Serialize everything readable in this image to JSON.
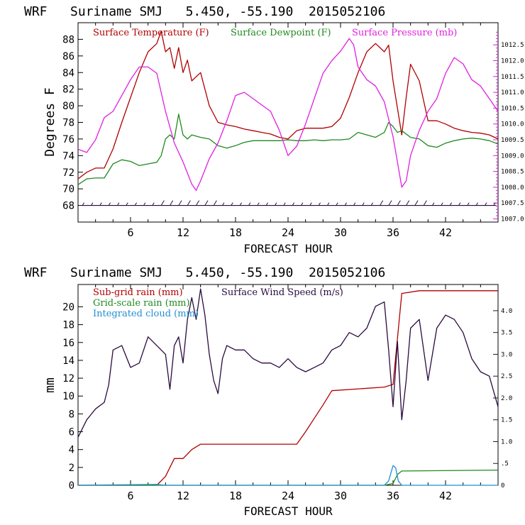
{
  "colors": {
    "temperature": "#b00000",
    "dewpoint": "#1f8a1f",
    "pressure": "#e020e0",
    "wind": "#2a0a40",
    "subgrid_rain": "#b00000",
    "gridscale_rain": "#1f8a1f",
    "cloud": "#1f8fd0",
    "axis": "#000000"
  },
  "chart_data": [
    {
      "type": "line",
      "title": "WRF   Suriname SMJ   5.450, -55.190  2015052106",
      "xlabel": "FORECAST HOUR",
      "ylabel": "Degrees F",
      "xlim": [
        0,
        48
      ],
      "ylim": [
        66,
        90
      ],
      "y2lim": [
        1006.9,
        1013.2
      ],
      "x_ticks": [
        6,
        12,
        18,
        24,
        30,
        36,
        42
      ],
      "y_ticks": [
        68,
        70,
        72,
        74,
        76,
        78,
        80,
        82,
        84,
        86,
        88
      ],
      "y2_ticks": [
        "1007.0",
        "1007.5",
        "1008.0",
        "1008.5",
        "1009.0",
        "1009.5",
        "1010.0",
        "1010.5",
        "1011.0",
        "1011.5",
        "1012.0",
        "1012.5"
      ],
      "legend": [
        "Surface Temperature (F)",
        "Surface Dewpoint (F)",
        "Surface Pressure (mb)"
      ],
      "legend_position": "top",
      "wind_barb_row_value": 68,
      "series": [
        {
          "name": "Surface Temperature (F)",
          "axis": "left",
          "x": [
            0,
            1,
            2,
            3,
            4,
            5,
            6,
            7,
            8,
            9,
            9.5,
            10,
            10.5,
            11,
            11.5,
            12,
            12.5,
            13,
            14,
            15,
            16,
            17,
            18,
            19,
            20,
            21,
            22,
            23,
            24,
            25,
            26,
            27,
            28,
            29,
            30,
            31,
            32,
            33,
            34,
            35,
            35.5,
            36,
            37,
            37.5,
            38,
            39,
            40,
            41,
            42,
            43,
            44,
            45,
            46,
            47,
            48
          ],
          "values": [
            71.2,
            72,
            72.5,
            72.5,
            74.8,
            78,
            81,
            84,
            86.5,
            87.5,
            89,
            86.5,
            87,
            84.5,
            87,
            84,
            85.5,
            83,
            84,
            80,
            78,
            77.7,
            77.5,
            77.2,
            77,
            76.8,
            76.6,
            76.2,
            76,
            77,
            77.3,
            77.3,
            77.3,
            77.5,
            78.5,
            81,
            84,
            86.5,
            87.5,
            86.5,
            87.3,
            83,
            76.5,
            81,
            85,
            83,
            78.2,
            78.2,
            77.8,
            77.3,
            77,
            76.8,
            76.7,
            76.5,
            76
          ]
        },
        {
          "name": "Surface Dewpoint (F)",
          "axis": "left",
          "x": [
            0,
            1,
            2,
            3,
            4,
            5,
            6,
            7,
            8,
            9,
            9.5,
            10,
            10.5,
            11,
            11.5,
            12,
            12.5,
            13,
            14,
            15,
            16,
            17,
            18,
            19,
            20,
            21,
            22,
            23,
            24,
            25,
            26,
            27,
            28,
            29,
            30,
            31,
            32,
            33,
            34,
            35,
            35.5,
            36,
            36.5,
            37,
            38,
            39,
            40,
            41,
            42,
            43,
            44,
            45,
            46,
            47,
            48
          ],
          "values": [
            70.5,
            71.2,
            71.3,
            71.3,
            73,
            73.5,
            73.3,
            72.8,
            73,
            73.2,
            74,
            76,
            76.5,
            76,
            79,
            76.5,
            76,
            76.5,
            76.2,
            76,
            75.2,
            74.9,
            75.2,
            75.6,
            75.8,
            75.8,
            75.8,
            75.8,
            75.9,
            75.8,
            75.8,
            75.9,
            75.8,
            75.9,
            75.9,
            76,
            76.8,
            76.5,
            76.2,
            76.8,
            78,
            77.5,
            76.8,
            77,
            76.2,
            76,
            75.2,
            75,
            75.5,
            75.8,
            76,
            76.1,
            76,
            75.8,
            75.4
          ]
        },
        {
          "name": "Surface Pressure (mb)",
          "axis": "right",
          "x": [
            0,
            1,
            2,
            3,
            4,
            5,
            6,
            7,
            8,
            9,
            10,
            11,
            12,
            13,
            13.5,
            14,
            15,
            16,
            17,
            18,
            19,
            20,
            21,
            22,
            23,
            24,
            25,
            26,
            27,
            28,
            29,
            30,
            31,
            31.5,
            32,
            33,
            34,
            35,
            36,
            36.5,
            37,
            37.5,
            38,
            39,
            40,
            41,
            42,
            43,
            44,
            45,
            46,
            47,
            48
          ],
          "values": [
            1009.2,
            1009.1,
            1009.5,
            1010.2,
            1010.4,
            1010.9,
            1011.4,
            1011.8,
            1011.8,
            1011.6,
            1010.4,
            1009.4,
            1008.8,
            1008.1,
            1007.9,
            1008.2,
            1008.9,
            1009.4,
            1010.1,
            1010.9,
            1011.0,
            1010.8,
            1010.6,
            1010.4,
            1009.8,
            1009.0,
            1009.3,
            1010.0,
            1010.8,
            1011.6,
            1012.0,
            1012.3,
            1012.7,
            1012.5,
            1011.8,
            1011.4,
            1011.2,
            1010.7,
            1009.6,
            1008.8,
            1008.0,
            1008.2,
            1009.0,
            1009.8,
            1010.4,
            1010.8,
            1011.6,
            1012.1,
            1011.9,
            1011.4,
            1011.2,
            1010.8,
            1010.4
          ]
        }
      ]
    },
    {
      "type": "line",
      "title": "WRF   Suriname SMJ   5.450, -55.190  2015052106",
      "xlabel": "FORECAST HOUR",
      "ylabel": "mm",
      "xlim": [
        0,
        48
      ],
      "ylim": [
        0,
        22.5
      ],
      "y2lim": [
        0,
        4.6
      ],
      "x_ticks": [
        6,
        12,
        18,
        24,
        30,
        36,
        42
      ],
      "y_ticks": [
        0,
        2,
        4,
        6,
        8,
        10,
        12,
        14,
        16,
        18,
        20
      ],
      "y2_ticks": [
        "0",
        ".5",
        "1.0",
        "1.5",
        "2.0",
        "2.5",
        "3.0",
        "3.5",
        "4.0"
      ],
      "legend": [
        "Sub-grid rain (mm)",
        "Surface Wind Speed (m/s)",
        "Grid-scale rain (mm)",
        "Integrated cloud (mm)"
      ],
      "legend_position": "top-left",
      "series": [
        {
          "name": "Sub-grid rain (mm)",
          "axis": "left",
          "x": [
            0,
            9,
            10,
            11,
            12,
            13,
            14,
            25,
            26,
            27,
            28,
            29,
            35,
            36,
            37,
            39,
            48
          ],
          "values": [
            0,
            0,
            1,
            3,
            3,
            4,
            4.6,
            4.6,
            6,
            7.5,
            9,
            10.6,
            11,
            11.3,
            21.5,
            21.8,
            21.8
          ]
        },
        {
          "name": "Grid-scale rain (mm)",
          "axis": "left",
          "x": [
            0,
            35,
            36,
            36.5,
            37,
            48
          ],
          "values": [
            0,
            0,
            0.2,
            1.2,
            1.6,
            1.7
          ]
        },
        {
          "name": "Integrated cloud (mm)",
          "axis": "right",
          "x": [
            0,
            9,
            10,
            35,
            35.5,
            36,
            36.3,
            36.6,
            37,
            48
          ],
          "values": [
            0,
            0.02,
            0,
            0,
            0.1,
            0.45,
            0.4,
            0.1,
            0,
            0
          ]
        },
        {
          "name": "Surface Wind Speed (m/s)",
          "axis": "right",
          "x": [
            0,
            1,
            2,
            3,
            3.5,
            4,
            5,
            6,
            7,
            8,
            9,
            10,
            10.5,
            11,
            11.5,
            12,
            12.5,
            13,
            13.5,
            14,
            14.5,
            15,
            15.5,
            16,
            16.5,
            17,
            18,
            19,
            20,
            21,
            22,
            23,
            24,
            25,
            26,
            27,
            28,
            29,
            30,
            31,
            32,
            33,
            34,
            35,
            35.5,
            36,
            36.5,
            37,
            37.5,
            38,
            39,
            40,
            41,
            42,
            43,
            44,
            45,
            46,
            47,
            48
          ],
          "values": [
            1.1,
            1.5,
            1.75,
            1.9,
            2.3,
            3.1,
            3.2,
            2.7,
            2.8,
            3.4,
            3.2,
            3.0,
            2.2,
            3.2,
            3.4,
            2.8,
            3.8,
            4.3,
            3.8,
            4.5,
            3.9,
            3.0,
            2.4,
            2.1,
            2.9,
            3.2,
            3.1,
            3.1,
            2.9,
            2.8,
            2.8,
            2.7,
            2.9,
            2.7,
            2.6,
            2.7,
            2.8,
            3.1,
            3.2,
            3.5,
            3.4,
            3.6,
            4.1,
            4.2,
            3.1,
            1.8,
            3.3,
            1.5,
            2.4,
            3.6,
            3.8,
            2.4,
            3.6,
            3.9,
            3.8,
            3.5,
            2.9,
            2.6,
            2.5,
            1.8
          ]
        }
      ]
    }
  ]
}
